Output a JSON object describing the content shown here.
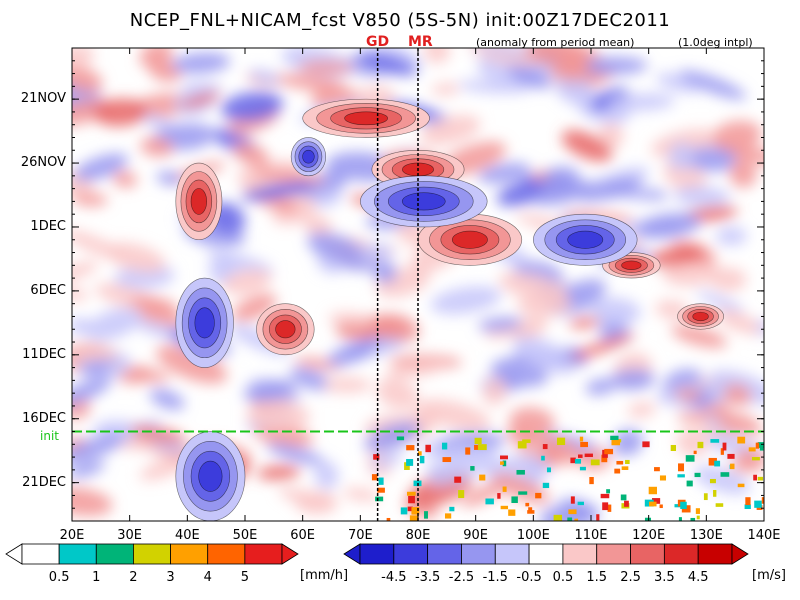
{
  "title": "NCEP_FNL+NICAM_fcst V850 (5S-5N) init:00Z17DEC2011",
  "anomaly_note": "(anomaly from period mean)",
  "interp_note": "(1.0deg intpl)",
  "markers": [
    "GD",
    "MR"
  ],
  "init_label": "init",
  "chart_data": {
    "type": "heatmap",
    "title": "NCEP_FNL+NICAM_fcst V850 (5S-5N) init:00Z17DEC2011",
    "x_axis": {
      "range": [
        20,
        140
      ],
      "units": "degrees east",
      "ticks": [
        20,
        30,
        40,
        50,
        60,
        70,
        80,
        90,
        100,
        110,
        120,
        130,
        140
      ],
      "tick_labels": [
        "20E",
        "30E",
        "40E",
        "50E",
        "60E",
        "70E",
        "80E",
        "90E",
        "100E",
        "110E",
        "120E",
        "130E",
        "140E"
      ]
    },
    "y_axis": {
      "range": [
        "2011-11-17",
        "2011-12-24"
      ],
      "direction": "time increases downward",
      "ticks": [
        "2011-11-21",
        "2011-11-26",
        "2011-12-01",
        "2011-12-06",
        "2011-12-11",
        "2011-12-16",
        "2011-12-21"
      ],
      "tick_labels": [
        "21NOV",
        "26NOV",
        "1DEC",
        "6DEC",
        "11DEC",
        "16DEC",
        "21DEC"
      ]
    },
    "init_time": "2011-12-17",
    "reference_lines": [
      {
        "label": "GD",
        "lon": 73
      },
      {
        "label": "MR",
        "lon": 80
      }
    ],
    "wind_colorbar": {
      "variable": "V850 anomaly",
      "unit": "[m/s]",
      "tick_labels": [
        "-4.5",
        "-3.5",
        "-2.5",
        "-1.5",
        "-0.5",
        "0.5",
        "1.5",
        "2.5",
        "3.5",
        "4.5"
      ],
      "colors": [
        "#1e1ecc",
        "#3c3cdc",
        "#6464e8",
        "#9696f0",
        "#c6c6fa",
        "#ffffff",
        "#fac8c8",
        "#f29696",
        "#e86464",
        "#dc2828",
        "#c80000"
      ]
    },
    "rain_colorbar": {
      "variable": "precipitation",
      "unit": "[mm/h]",
      "tick_labels": [
        "0.5",
        "1",
        "2",
        "3",
        "4",
        "5"
      ],
      "colors": [
        "#ffffff",
        "#00c8c8",
        "#00b478",
        "#d2d200",
        "#ffa000",
        "#ff6400",
        "#e61e1e"
      ]
    },
    "features": [
      {
        "sign": "positive",
        "lon_range": [
          60,
          82
        ],
        "date_range": [
          "2011-11-21",
          "2011-11-24"
        ]
      },
      {
        "sign": "positive",
        "lon_range": [
          72,
          88
        ],
        "date_range": [
          "2011-11-25",
          "2011-11-28"
        ]
      },
      {
        "sign": "positive",
        "lon_range": [
          38,
          46
        ],
        "date_range": [
          "2011-11-26",
          "2011-12-02"
        ]
      },
      {
        "sign": "positive",
        "lon_range": [
          80,
          98
        ],
        "date_range": [
          "2011-11-30",
          "2011-12-04"
        ]
      },
      {
        "sign": "positive",
        "lon_range": [
          112,
          122
        ],
        "date_range": [
          "2011-12-03",
          "2011-12-05"
        ]
      },
      {
        "sign": "positive",
        "lon_range": [
          125,
          133
        ],
        "date_range": [
          "2011-12-07",
          "2011-12-09"
        ]
      },
      {
        "sign": "positive",
        "lon_range": [
          52,
          62
        ],
        "date_range": [
          "2011-12-07",
          "2011-12-11"
        ]
      },
      {
        "sign": "negative",
        "lon_range": [
          58,
          64
        ],
        "date_range": [
          "2011-11-24",
          "2011-11-27"
        ]
      },
      {
        "sign": "negative",
        "lon_range": [
          70,
          92
        ],
        "date_range": [
          "2011-11-27",
          "2011-12-01"
        ]
      },
      {
        "sign": "negative",
        "lon_range": [
          100,
          118
        ],
        "date_range": [
          "2011-11-30",
          "2011-12-04"
        ]
      },
      {
        "sign": "negative",
        "lon_range": [
          38,
          48
        ],
        "date_range": [
          "2011-12-05",
          "2011-12-12"
        ]
      },
      {
        "sign": "negative",
        "lon_range": [
          38,
          50
        ],
        "date_range": [
          "2011-12-17",
          "2011-12-24"
        ]
      }
    ]
  }
}
